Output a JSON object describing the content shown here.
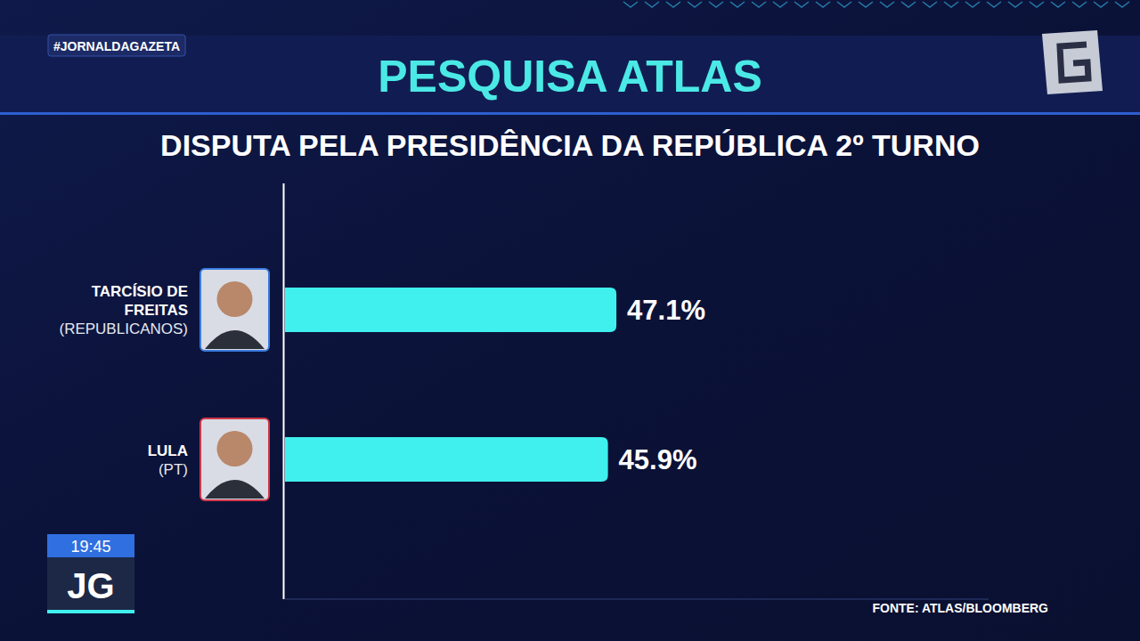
{
  "chart_data": {
    "type": "bar",
    "orientation": "horizontal",
    "header_tag": "#JORNALDAGAZETA",
    "title": "PESQUISA ATLAS",
    "subtitle": "DISPUTA PELA PRESIDÊNCIA DA REPÚBLICA 2º TURNO",
    "categories": [
      "TARCÍSIO DE FREITAS",
      "LULA"
    ],
    "parties": [
      "(REPUBLICANOS)",
      "(PT)"
    ],
    "values": [
      47.1,
      45.9
    ],
    "value_labels": [
      "47.1%",
      "45.9%"
    ],
    "data_labels": true,
    "color": "#3ff0ee",
    "xlim": [
      0,
      100
    ],
    "xticks": [],
    "tick_labels": false,
    "grid": false,
    "source": "FONTE: ATLAS/BLOOMBERG",
    "time": "19:45",
    "program": "JG"
  }
}
